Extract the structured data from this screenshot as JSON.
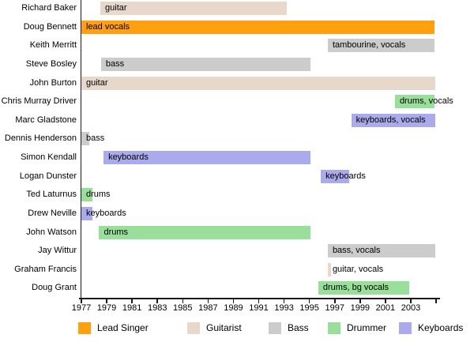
{
  "chart_data": {
    "type": "timeline",
    "title": "",
    "xlabel": "",
    "ylabel": "",
    "grid": false,
    "legend_position": "bottom",
    "x_axis": {
      "min": 1977,
      "max": 2005.3,
      "tick_years": [
        1977,
        1979,
        1981,
        1983,
        1985,
        1987,
        1989,
        1991,
        1993,
        1995,
        1997,
        1999,
        2001,
        2003
      ],
      "end_tick_year": 2005
    },
    "roles": {
      "lead_singer": {
        "label": "Lead Singer",
        "color": "#ffa011"
      },
      "guitarist": {
        "label": "Guitarist",
        "color": "#e8d8cc"
      },
      "bass": {
        "label": "Bass",
        "color": "#cccccc"
      },
      "drummer": {
        "label": "Drummer",
        "color": "#9ade9b"
      },
      "keyboards": {
        "label": "Keyboards",
        "color": "#aaaaec"
      }
    },
    "legend_order": [
      "lead_singer",
      "guitarist",
      "bass",
      "drummer",
      "keyboards"
    ],
    "members": [
      {
        "name": "Richard Baker",
        "bar_label": "guitar",
        "role": "guitarist",
        "start": 1978.5,
        "end": 1993.2
      },
      {
        "name": "Doug Bennett",
        "bar_label": "lead vocals",
        "role": "lead_singer",
        "start": 1977,
        "end": 2004.9
      },
      {
        "name": "Keith Merritt",
        "bar_label": "tambourine, vocals",
        "role": "bass",
        "start": 1996.45,
        "end": 2004.9
      },
      {
        "name": "Steve Bosley",
        "bar_label": "bass",
        "role": "bass",
        "start": 1978.55,
        "end": 1995.1
      },
      {
        "name": "John Burton",
        "bar_label": "guitar",
        "role": "guitarist",
        "start": 1977,
        "end": 2004.95
      },
      {
        "name": "Chris Murray Driver",
        "bar_label": "drums, vocals",
        "role": "drummer",
        "start": 2001.75,
        "end": 2004.9
      },
      {
        "name": "Marc Gladstone",
        "bar_label": "keyboards, vocals",
        "role": "keyboards",
        "start": 1998.3,
        "end": 2004.95
      },
      {
        "name": "Dennis Henderson",
        "bar_label": "bass",
        "role": "bass",
        "start": 1977,
        "end": 1977.6
      },
      {
        "name": "Simon Kendall",
        "bar_label": "keyboards",
        "role": "keyboards",
        "start": 1978.75,
        "end": 1995.1
      },
      {
        "name": "Logan Dunster",
        "bar_label": "keyboards",
        "role": "keyboards",
        "start": 1995.9,
        "end": 1998.15
      },
      {
        "name": "Ted Laturnus",
        "bar_label": "drums",
        "role": "drummer",
        "start": 1977,
        "end": 1977.85
      },
      {
        "name": "Drew Neville",
        "bar_label": "keyboards",
        "role": "keyboards",
        "start": 1977,
        "end": 1977.85
      },
      {
        "name": "John Watson",
        "bar_label": "drums",
        "role": "drummer",
        "start": 1978.4,
        "end": 1995.1
      },
      {
        "name": "Jay Wittur",
        "bar_label": "bass, vocals",
        "role": "bass",
        "start": 1996.45,
        "end": 2004.95
      },
      {
        "name": "Graham Francis",
        "bar_label": "guitar, vocals",
        "role": "guitarist",
        "start": 1996.45,
        "end": 1996.7
      },
      {
        "name": "Doug Grant",
        "bar_label": "drums, bg vocals",
        "role": "drummer",
        "start": 1995.7,
        "end": 2002.9
      }
    ]
  }
}
